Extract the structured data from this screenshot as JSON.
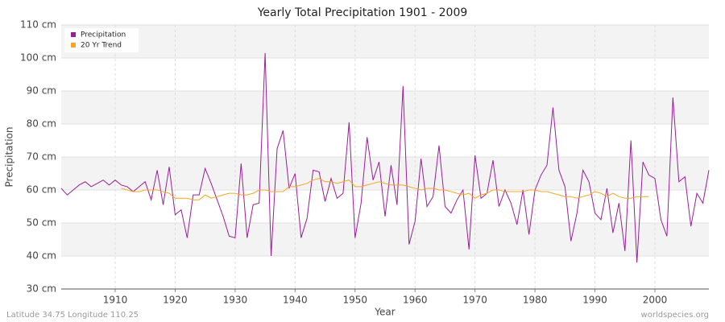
{
  "chart_data": {
    "type": "line",
    "title": "Yearly Total Precipitation 1901 - 2009",
    "x_label": "Year",
    "y_label": "Precipitation",
    "footer_left": "Latitude 34.75 Longitude 110.25",
    "footer_right": "worldspecies.org",
    "x": [
      1901,
      1902,
      1903,
      1904,
      1905,
      1906,
      1907,
      1908,
      1909,
      1910,
      1911,
      1912,
      1913,
      1914,
      1915,
      1916,
      1917,
      1918,
      1919,
      1920,
      1921,
      1922,
      1923,
      1924,
      1925,
      1926,
      1927,
      1928,
      1929,
      1930,
      1931,
      1932,
      1933,
      1934,
      1935,
      1936,
      1937,
      1938,
      1939,
      1940,
      1941,
      1942,
      1943,
      1944,
      1945,
      1946,
      1947,
      1948,
      1949,
      1950,
      1951,
      1952,
      1953,
      1954,
      1955,
      1956,
      1957,
      1958,
      1959,
      1960,
      1961,
      1962,
      1963,
      1964,
      1965,
      1966,
      1967,
      1968,
      1969,
      1970,
      1971,
      1972,
      1973,
      1974,
      1975,
      1976,
      1977,
      1978,
      1979,
      1980,
      1981,
      1982,
      1983,
      1984,
      1985,
      1986,
      1987,
      1988,
      1989,
      1990,
      1991,
      1992,
      1993,
      1994,
      1995,
      1996,
      1997,
      1998,
      1999,
      2000,
      2001,
      2002,
      2003,
      2004,
      2005,
      2006,
      2007,
      2008,
      2009
    ],
    "series": [
      {
        "name": "Precipitation",
        "color": "#991f99",
        "values": [
          60.5,
          58.5,
          60,
          61.5,
          62.5,
          61,
          62,
          63,
          61.5,
          63,
          61.5,
          61,
          59.5,
          61,
          62.5,
          57,
          66,
          55.5,
          67,
          52.5,
          54,
          45.5,
          58.5,
          58.5,
          66.5,
          62,
          57,
          52,
          46,
          45.5,
          68,
          45.5,
          55.5,
          56,
          101.5,
          40,
          72.5,
          78,
          60.5,
          65,
          45.5,
          51.5,
          66,
          65.5,
          56.5,
          63.5,
          57.5,
          59,
          80.5,
          45.5,
          56,
          76,
          63,
          68.5,
          52,
          67.5,
          55.5,
          91.5,
          43.5,
          50.5,
          69.5,
          55,
          58,
          73.5,
          55,
          53,
          57,
          60,
          42,
          70.5,
          57.5,
          59,
          69,
          55,
          60,
          56,
          49.5,
          60,
          46.5,
          60,
          64.5,
          67.5,
          85,
          66,
          61,
          44.5,
          53,
          66,
          62.5,
          53,
          51,
          60.5,
          47,
          56,
          41.5,
          75,
          38,
          68.5,
          64.5,
          63.5,
          51,
          46,
          88,
          62.5,
          64,
          49,
          59,
          56,
          66
        ]
      },
      {
        "name": "20 Yr Trend",
        "color": "#f5a623",
        "values": [
          null,
          null,
          null,
          null,
          null,
          null,
          null,
          null,
          null,
          null,
          60.5,
          60,
          59.5,
          59.5,
          60,
          60,
          60,
          59.5,
          59,
          57.5,
          57.5,
          57.5,
          57,
          57,
          58.5,
          57.5,
          58,
          58.5,
          59,
          59,
          58.5,
          58.5,
          59,
          60,
          60,
          59.5,
          59.5,
          59.5,
          61,
          61,
          61.5,
          62,
          63,
          63.5,
          62.5,
          62.5,
          62,
          62.5,
          63,
          61,
          61,
          61.5,
          62,
          62.5,
          62,
          61.5,
          61.5,
          61.5,
          61,
          60.5,
          60,
          60.5,
          60.5,
          60,
          60,
          59.5,
          59,
          58.5,
          59,
          57.5,
          58.5,
          59,
          60,
          60,
          59.5,
          59.5,
          59.5,
          59.5,
          60,
          60,
          59.5,
          59.5,
          59,
          58.5,
          58,
          58,
          57.5,
          58,
          58.5,
          59.5,
          59,
          58,
          59,
          58,
          57.5,
          57.5,
          58,
          58,
          58,
          null,
          null,
          null,
          null,
          null,
          null,
          null,
          null,
          null,
          null
        ]
      }
    ],
    "xlim": [
      1901,
      2009
    ],
    "ylim": [
      30,
      110
    ],
    "xticks": [
      1910,
      1920,
      1930,
      1940,
      1950,
      1960,
      1970,
      1980,
      1990,
      2000
    ],
    "yticks": [
      {
        "value": 30,
        "label": "30 cm"
      },
      {
        "value": 40,
        "label": "40 cm"
      },
      {
        "value": 50,
        "label": "50 cm"
      },
      {
        "value": 60,
        "label": "60 cm"
      },
      {
        "value": 70,
        "label": "70 cm"
      },
      {
        "value": 80,
        "label": "80 cm"
      },
      {
        "value": 90,
        "label": "90 cm"
      },
      {
        "value": 100,
        "label": "100 cm"
      },
      {
        "value": 110,
        "label": "110 cm"
      }
    ],
    "grid": true,
    "legend_position": "upper-left"
  }
}
